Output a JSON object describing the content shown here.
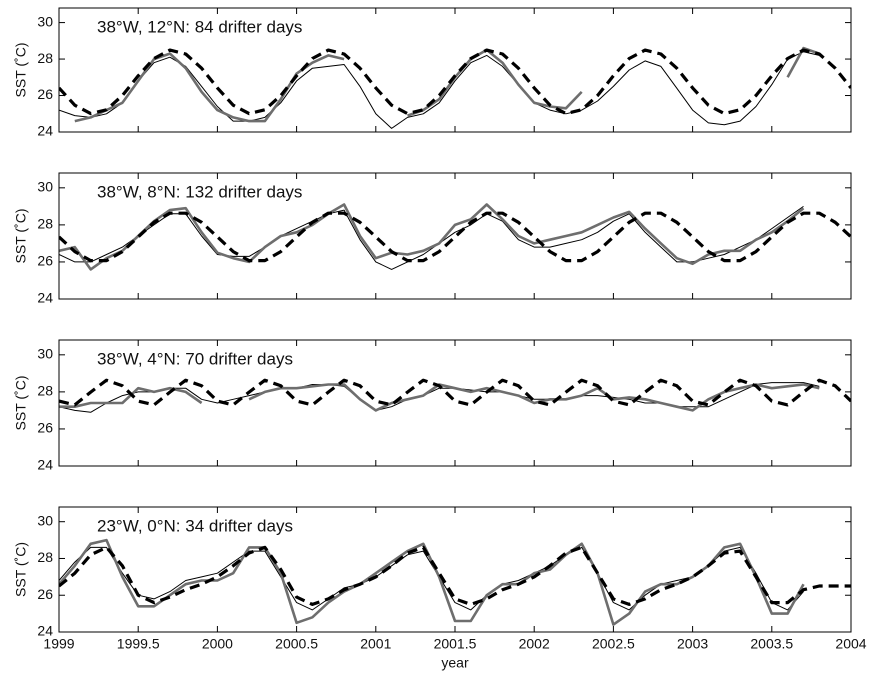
{
  "chart_data": [
    {
      "type": "line",
      "annotation": "38°W, 12°N: 84 drifter days",
      "ylabel": "SST (˚C)",
      "xlim": [
        1999,
        2004
      ],
      "ylim": [
        24,
        30.8
      ],
      "yticks": [
        24,
        26,
        28,
        30
      ],
      "xticks": [
        1999,
        1999.5,
        2000,
        2000.5,
        2001,
        2001.5,
        2002,
        2002.5,
        2003,
        2003.5,
        2004
      ],
      "x": [
        1999,
        1999.1,
        1999.2,
        1999.3,
        1999.4,
        1999.5,
        1999.6,
        1999.7,
        1999.8,
        1999.9,
        2000,
        2000.1,
        2000.2,
        2000.3,
        2000.4,
        2000.5,
        2000.6,
        2000.7,
        2000.8,
        2000.9,
        2001,
        2001.1,
        2001.2,
        2001.3,
        2001.4,
        2001.5,
        2001.6,
        2001.7,
        2001.8,
        2001.9,
        2002,
        2002.1,
        2002.2,
        2002.3,
        2002.4,
        2002.5,
        2002.6,
        2002.7,
        2002.8,
        2002.9,
        2003,
        2003.1,
        2003.2,
        2003.3,
        2003.4,
        2003.5,
        2003.6,
        2003.7,
        2003.8,
        2003.9,
        2004
      ],
      "series": [
        {
          "color": "#000000",
          "width": 1,
          "dashed": false,
          "values": [
            25.2,
            24.9,
            24.8,
            25.0,
            25.6,
            26.8,
            27.8,
            28.1,
            27.6,
            26.5,
            25.4,
            24.6,
            24.6,
            24.8,
            25.6,
            26.8,
            27.5,
            27.6,
            27.7,
            26.5,
            25.0,
            24.2,
            24.8,
            25.0,
            25.6,
            26.8,
            27.8,
            28.2,
            27.6,
            26.6,
            25.6,
            25.2,
            25.0,
            25.2,
            25.7,
            26.5,
            27.4,
            27.9,
            27.6,
            26.4,
            25.2,
            24.5,
            24.4,
            24.6,
            25.4,
            26.6,
            28.0,
            28.4,
            28.2,
            null,
            null
          ]
        },
        {
          "color": "#6e6e6e",
          "width": 2.6,
          "dashed": false,
          "values": [
            null,
            24.6,
            24.8,
            25.2,
            25.6,
            26.8,
            28.0,
            28.3,
            27.5,
            26.2,
            25.2,
            24.8,
            24.6,
            24.6,
            25.8,
            27.2,
            27.8,
            28.2,
            28.0,
            null,
            null,
            null,
            24.9,
            25.2,
            25.8,
            27.0,
            28.0,
            28.5,
            27.8,
            26.6,
            25.6,
            25.4,
            25.3,
            26.2,
            null,
            null,
            null,
            null,
            null,
            null,
            null,
            null,
            null,
            null,
            null,
            null,
            27.0,
            28.6,
            28.3,
            null,
            null
          ]
        },
        {
          "color": "#000000",
          "width": 3.2,
          "dashed": true,
          "values": [
            26.42,
            25.47,
            25.01,
            25.22,
            26.0,
            27.08,
            28.03,
            28.49,
            28.28,
            27.5,
            26.42,
            25.47,
            25.01,
            25.22,
            26.0,
            27.08,
            28.03,
            28.49,
            28.28,
            27.5,
            26.42,
            25.47,
            25.01,
            25.22,
            26.0,
            27.08,
            28.03,
            28.49,
            28.28,
            27.5,
            26.42,
            25.47,
            25.01,
            25.22,
            26.0,
            27.08,
            28.03,
            28.49,
            28.28,
            27.5,
            26.42,
            25.47,
            25.01,
            25.22,
            26.0,
            27.08,
            28.03,
            28.49,
            28.28,
            27.5,
            26.42
          ]
        }
      ]
    },
    {
      "type": "line",
      "annotation": "38°W, 8°N: 132 drifter days",
      "ylabel": "SST (˚C)",
      "xlim": [
        1999,
        2004
      ],
      "ylim": [
        24,
        30.8
      ],
      "yticks": [
        24,
        26,
        28,
        30
      ],
      "xticks": [
        1999,
        1999.5,
        2000,
        2000.5,
        2001,
        2001.5,
        2002,
        2002.5,
        2003,
        2003.5,
        2004
      ],
      "x": [
        1999,
        1999.1,
        1999.2,
        1999.3,
        1999.4,
        1999.5,
        1999.6,
        1999.7,
        1999.8,
        1999.9,
        2000,
        2000.1,
        2000.2,
        2000.3,
        2000.4,
        2000.5,
        2000.6,
        2000.7,
        2000.8,
        2000.9,
        2001,
        2001.1,
        2001.2,
        2001.3,
        2001.4,
        2001.5,
        2001.6,
        2001.7,
        2001.8,
        2001.9,
        2002,
        2002.1,
        2002.2,
        2002.3,
        2002.4,
        2002.5,
        2002.6,
        2002.7,
        2002.8,
        2002.9,
        2003,
        2003.1,
        2003.2,
        2003.3,
        2003.4,
        2003.5,
        2003.6,
        2003.7,
        2003.8,
        2003.9,
        2004
      ],
      "series": [
        {
          "color": "#000000",
          "width": 1,
          "dashed": false,
          "values": [
            26.4,
            26.0,
            26.0,
            26.4,
            26.8,
            27.4,
            28.0,
            28.6,
            28.6,
            27.4,
            26.4,
            26.3,
            26.3,
            26.8,
            27.4,
            27.8,
            28.2,
            28.6,
            28.8,
            27.2,
            26.0,
            25.6,
            26.0,
            26.4,
            27.0,
            27.6,
            28.0,
            28.6,
            28.2,
            27.2,
            26.8,
            26.8,
            27.0,
            27.2,
            27.6,
            28.2,
            28.6,
            27.6,
            26.8,
            26.0,
            26.0,
            26.2,
            26.4,
            26.8,
            27.2,
            27.8,
            28.4,
            29.0,
            null,
            null,
            null
          ]
        },
        {
          "color": "#6e6e6e",
          "width": 2.6,
          "dashed": false,
          "values": [
            26.6,
            26.8,
            25.6,
            26.2,
            26.6,
            27.4,
            28.2,
            28.8,
            28.9,
            27.6,
            26.5,
            26.2,
            26.0,
            26.8,
            27.4,
            27.6,
            28.0,
            28.6,
            29.1,
            27.4,
            26.2,
            26.5,
            26.4,
            26.6,
            27.0,
            28.0,
            28.3,
            29.1,
            28.3,
            27.4,
            27.0,
            27.2,
            27.4,
            27.6,
            28.0,
            28.4,
            28.7,
            27.8,
            27.0,
            26.2,
            25.9,
            26.4,
            26.6,
            26.6,
            27.2,
            27.6,
            28.2,
            28.9,
            null,
            null,
            null
          ]
        },
        {
          "color": "#000000",
          "width": 3.2,
          "dashed": true,
          "values": [
            27.35,
            26.56,
            26.07,
            26.07,
            26.56,
            27.35,
            28.14,
            28.63,
            28.63,
            28.14,
            27.35,
            26.56,
            26.07,
            26.07,
            26.56,
            27.35,
            28.14,
            28.63,
            28.63,
            28.14,
            27.35,
            26.56,
            26.07,
            26.07,
            26.56,
            27.35,
            28.14,
            28.63,
            28.63,
            28.14,
            27.35,
            26.56,
            26.07,
            26.07,
            26.56,
            27.35,
            28.14,
            28.63,
            28.63,
            28.14,
            27.35,
            26.56,
            26.07,
            26.07,
            26.56,
            27.35,
            28.14,
            28.63,
            28.63,
            28.14,
            27.35
          ]
        }
      ]
    },
    {
      "type": "line",
      "annotation": "38°W, 4°N: 70 drifter days",
      "ylabel": "SST (˚C)",
      "xlim": [
        1999,
        2004
      ],
      "ylim": [
        24,
        30.8
      ],
      "yticks": [
        24,
        26,
        28,
        30
      ],
      "xticks": [
        1999,
        1999.5,
        2000,
        2000.5,
        2001,
        2001.5,
        2002,
        2002.5,
        2003,
        2003.5,
        2004
      ],
      "x": [
        1999,
        1999.1,
        1999.2,
        1999.3,
        1999.4,
        1999.5,
        1999.6,
        1999.7,
        1999.8,
        1999.9,
        2000,
        2000.1,
        2000.2,
        2000.3,
        2000.4,
        2000.5,
        2000.6,
        2000.7,
        2000.8,
        2000.9,
        2001,
        2001.1,
        2001.2,
        2001.3,
        2001.4,
        2001.5,
        2001.6,
        2001.7,
        2001.8,
        2001.9,
        2002,
        2002.1,
        2002.2,
        2002.3,
        2002.4,
        2002.5,
        2002.6,
        2002.7,
        2002.8,
        2002.9,
        2003,
        2003.1,
        2003.2,
        2003.3,
        2003.4,
        2003.5,
        2003.6,
        2003.7,
        2003.8,
        2003.9,
        2004
      ],
      "series": [
        {
          "color": "#000000",
          "width": 1,
          "dashed": false,
          "values": [
            27.2,
            27.0,
            26.9,
            27.4,
            27.8,
            28.0,
            28.0,
            28.2,
            28.2,
            27.6,
            27.4,
            27.6,
            27.8,
            28.0,
            28.2,
            28.2,
            28.4,
            28.4,
            28.3,
            27.6,
            27.0,
            27.2,
            27.6,
            27.8,
            28.2,
            28.2,
            28.1,
            28.0,
            28.0,
            27.8,
            27.6,
            27.6,
            27.6,
            27.8,
            27.8,
            27.7,
            27.6,
            27.4,
            27.4,
            27.2,
            27.2,
            27.2,
            27.6,
            28.0,
            28.4,
            28.5,
            28.5,
            28.5,
            28.3,
            null,
            null
          ]
        },
        {
          "color": "#6e6e6e",
          "width": 2.6,
          "dashed": false,
          "values": [
            27.2,
            27.2,
            27.4,
            27.4,
            27.4,
            28.2,
            28.0,
            28.2,
            28.0,
            27.4,
            null,
            null,
            27.6,
            28.0,
            28.2,
            28.2,
            28.3,
            28.4,
            28.4,
            27.6,
            27.0,
            27.4,
            27.6,
            27.8,
            28.4,
            28.2,
            28.0,
            28.2,
            28.0,
            27.8,
            27.4,
            27.6,
            27.6,
            27.8,
            28.2,
            27.6,
            27.7,
            27.6,
            27.4,
            27.2,
            27.0,
            27.6,
            28.0,
            28.2,
            28.4,
            28.2,
            28.3,
            28.4,
            28.2,
            null,
            null
          ]
        },
        {
          "color": "#000000",
          "width": 3.2,
          "dashed": true,
          "values": [
            27.5,
            27.3,
            27.99,
            28.63,
            28.33,
            27.5,
            27.3,
            27.99,
            28.63,
            28.33,
            27.5,
            27.3,
            27.99,
            28.63,
            28.33,
            27.5,
            27.3,
            27.99,
            28.63,
            28.33,
            27.5,
            27.3,
            27.99,
            28.63,
            28.33,
            27.5,
            27.3,
            27.99,
            28.63,
            28.33,
            27.5,
            27.3,
            27.99,
            28.63,
            28.33,
            27.5,
            27.3,
            27.99,
            28.63,
            28.33,
            27.5,
            27.3,
            27.99,
            28.63,
            28.33,
            27.5,
            27.3,
            27.99,
            28.63,
            28.33,
            27.5
          ]
        }
      ]
    },
    {
      "type": "line",
      "annotation": "23°W, 0°N: 34 drifter days",
      "ylabel": "SST (˚C)",
      "xlabel": "year",
      "xlim": [
        1999,
        2004
      ],
      "ylim": [
        24,
        30.8
      ],
      "yticks": [
        24,
        26,
        28,
        30
      ],
      "xticks": [
        1999,
        1999.5,
        2000,
        2000.5,
        2001,
        2001.5,
        2002,
        2002.5,
        2003,
        2003.5,
        2004
      ],
      "x": [
        1999,
        1999.1,
        1999.2,
        1999.3,
        1999.4,
        1999.5,
        1999.6,
        1999.7,
        1999.8,
        1999.9,
        2000,
        2000.1,
        2000.2,
        2000.3,
        2000.4,
        2000.5,
        2000.6,
        2000.7,
        2000.8,
        2000.9,
        2001,
        2001.1,
        2001.2,
        2001.3,
        2001.4,
        2001.5,
        2001.6,
        2001.7,
        2001.8,
        2001.9,
        2002,
        2002.1,
        2002.2,
        2002.3,
        2002.4,
        2002.5,
        2002.6,
        2002.7,
        2002.8,
        2002.9,
        2003,
        2003.1,
        2003.2,
        2003.3,
        2003.4,
        2003.5,
        2003.6,
        2003.7,
        2003.8,
        2003.9,
        2004
      ],
      "series": [
        {
          "color": "#000000",
          "width": 1,
          "dashed": false,
          "values": [
            26.8,
            27.8,
            28.6,
            28.6,
            27.2,
            26.0,
            25.8,
            26.2,
            26.8,
            27.0,
            27.2,
            27.8,
            28.4,
            28.4,
            27.0,
            25.6,
            25.2,
            25.8,
            26.4,
            26.6,
            27.0,
            27.6,
            28.2,
            28.4,
            27.0,
            25.6,
            25.2,
            26.0,
            26.6,
            26.8,
            27.2,
            27.6,
            28.2,
            28.6,
            27.2,
            25.6,
            25.2,
            26.0,
            26.6,
            26.8,
            27.0,
            27.6,
            28.4,
            28.6,
            27.2,
            25.6,
            25.2,
            26.2,
            null,
            null,
            null
          ]
        },
        {
          "color": "#6e6e6e",
          "width": 2.6,
          "dashed": false,
          "values": [
            26.6,
            27.6,
            28.8,
            29.0,
            27.0,
            25.4,
            25.4,
            26.0,
            26.6,
            26.8,
            26.8,
            27.2,
            28.6,
            28.6,
            27.2,
            24.5,
            24.8,
            25.6,
            26.2,
            26.6,
            27.2,
            27.8,
            28.4,
            28.8,
            27.0,
            24.6,
            24.6,
            26.0,
            26.6,
            26.6,
            27.2,
            27.4,
            28.2,
            28.8,
            27.2,
            24.4,
            25.0,
            26.2,
            26.6,
            26.6,
            27.0,
            27.6,
            28.6,
            28.8,
            27.0,
            25.0,
            25.0,
            26.6,
            null,
            null,
            null
          ]
        },
        {
          "color": "#000000",
          "width": 3.2,
          "dashed": true,
          "values": [
            26.5,
            27.2,
            28.2,
            28.6,
            27.6,
            26.0,
            25.6,
            25.9,
            26.3,
            26.6,
            27.0,
            27.6,
            28.3,
            28.6,
            27.4,
            25.9,
            25.5,
            25.8,
            26.3,
            26.6,
            27.0,
            27.6,
            28.3,
            28.6,
            27.2,
            25.8,
            25.5,
            25.8,
            26.3,
            26.6,
            27.0,
            27.6,
            28.3,
            28.6,
            27.2,
            25.8,
            25.5,
            25.8,
            26.3,
            26.6,
            27.0,
            27.6,
            28.3,
            28.4,
            27.0,
            25.6,
            25.6,
            26.3,
            26.5,
            26.5,
            26.5
          ]
        }
      ]
    }
  ]
}
